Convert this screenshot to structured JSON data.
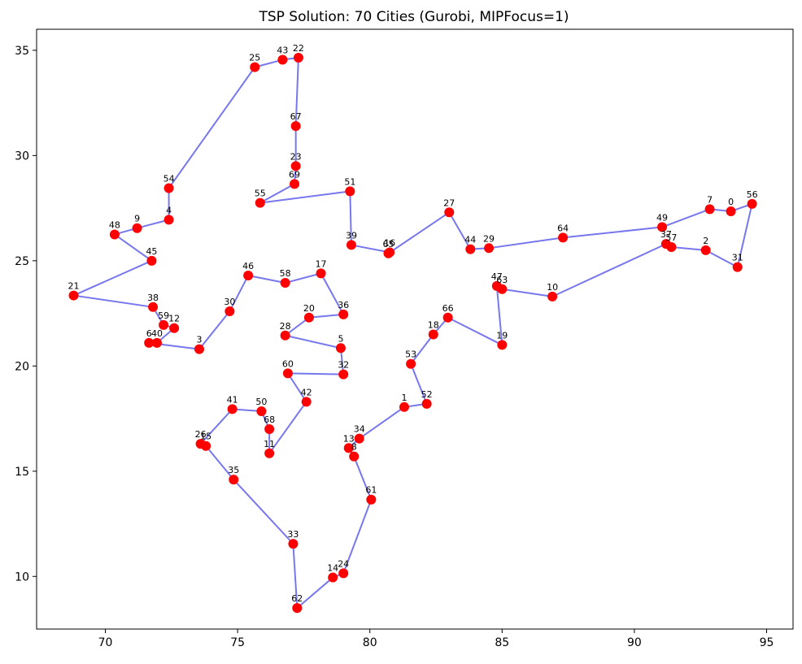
{
  "chart_data": {
    "type": "scatter",
    "title": "TSP Solution: 70 Cities (Gurobi, MIPFocus=1)",
    "xlabel": "",
    "ylabel": "",
    "xlim": [
      67.4,
      96.0
    ],
    "ylim": [
      7.5,
      36.0
    ],
    "xticks": [
      70,
      75,
      80,
      85,
      90,
      95
    ],
    "yticks": [
      10,
      15,
      20,
      25,
      30,
      35
    ],
    "grid": false,
    "colors": {
      "route": "#7777ee",
      "city": "#ff0000",
      "text": "#000000"
    },
    "cities": [
      {
        "id": "0",
        "x": 93.65,
        "y": 27.35
      },
      {
        "id": "1",
        "x": 81.3,
        "y": 18.05
      },
      {
        "id": "2",
        "x": 92.7,
        "y": 25.5
      },
      {
        "id": "3",
        "x": 73.55,
        "y": 20.8
      },
      {
        "id": "4",
        "x": 72.4,
        "y": 26.95
      },
      {
        "id": "5",
        "x": 78.9,
        "y": 20.85
      },
      {
        "id": "6",
        "x": 71.65,
        "y": 21.1
      },
      {
        "id": "7",
        "x": 92.85,
        "y": 27.45
      },
      {
        "id": "8",
        "x": 79.4,
        "y": 15.7
      },
      {
        "id": "9",
        "x": 71.2,
        "y": 26.55
      },
      {
        "id": "10",
        "x": 86.9,
        "y": 23.3
      },
      {
        "id": "11",
        "x": 76.2,
        "y": 15.85
      },
      {
        "id": "12",
        "x": 72.6,
        "y": 21.8
      },
      {
        "id": "13",
        "x": 79.2,
        "y": 16.1
      },
      {
        "id": "14",
        "x": 78.6,
        "y": 9.95
      },
      {
        "id": "15",
        "x": 73.8,
        "y": 16.2
      },
      {
        "id": "16",
        "x": 80.75,
        "y": 25.4
      },
      {
        "id": "17",
        "x": 78.15,
        "y": 24.4
      },
      {
        "id": "18",
        "x": 82.4,
        "y": 21.5
      },
      {
        "id": "19",
        "x": 85.0,
        "y": 21.0
      },
      {
        "id": "20",
        "x": 77.7,
        "y": 22.3
      },
      {
        "id": "21",
        "x": 68.8,
        "y": 23.35
      },
      {
        "id": "22",
        "x": 77.3,
        "y": 34.65
      },
      {
        "id": "23",
        "x": 77.2,
        "y": 29.5
      },
      {
        "id": "24",
        "x": 79.0,
        "y": 10.15
      },
      {
        "id": "25",
        "x": 75.65,
        "y": 34.2
      },
      {
        "id": "26",
        "x": 73.6,
        "y": 16.3
      },
      {
        "id": "27",
        "x": 83.0,
        "y": 27.3
      },
      {
        "id": "28",
        "x": 76.8,
        "y": 21.45
      },
      {
        "id": "29",
        "x": 84.5,
        "y": 25.6
      },
      {
        "id": "30",
        "x": 74.7,
        "y": 22.6
      },
      {
        "id": "31",
        "x": 93.9,
        "y": 24.7
      },
      {
        "id": "32",
        "x": 79.0,
        "y": 19.6
      },
      {
        "id": "33",
        "x": 77.1,
        "y": 11.55
      },
      {
        "id": "34",
        "x": 79.6,
        "y": 16.55
      },
      {
        "id": "35",
        "x": 74.85,
        "y": 14.6
      },
      {
        "id": "36",
        "x": 79.0,
        "y": 22.45
      },
      {
        "id": "37",
        "x": 91.2,
        "y": 25.8
      },
      {
        "id": "38",
        "x": 71.8,
        "y": 22.8
      },
      {
        "id": "39",
        "x": 79.3,
        "y": 25.75
      },
      {
        "id": "40",
        "x": 71.95,
        "y": 21.1
      },
      {
        "id": "41",
        "x": 74.8,
        "y": 17.95
      },
      {
        "id": "42",
        "x": 77.6,
        "y": 18.3
      },
      {
        "id": "43",
        "x": 76.7,
        "y": 34.55
      },
      {
        "id": "44",
        "x": 83.8,
        "y": 25.55
      },
      {
        "id": "45",
        "x": 71.75,
        "y": 25.0
      },
      {
        "id": "46",
        "x": 75.4,
        "y": 24.3
      },
      {
        "id": "47",
        "x": 84.8,
        "y": 23.8
      },
      {
        "id": "48",
        "x": 70.35,
        "y": 26.25
      },
      {
        "id": "49",
        "x": 91.05,
        "y": 26.6
      },
      {
        "id": "50",
        "x": 75.9,
        "y": 17.85
      },
      {
        "id": "51",
        "x": 79.25,
        "y": 28.3
      },
      {
        "id": "52",
        "x": 82.15,
        "y": 18.2
      },
      {
        "id": "53",
        "x": 81.55,
        "y": 20.1
      },
      {
        "id": "54",
        "x": 72.4,
        "y": 28.45
      },
      {
        "id": "55",
        "x": 75.85,
        "y": 27.75
      },
      {
        "id": "56",
        "x": 94.45,
        "y": 27.7
      },
      {
        "id": "57",
        "x": 91.4,
        "y": 25.65
      },
      {
        "id": "58",
        "x": 76.8,
        "y": 23.95
      },
      {
        "id": "59",
        "x": 72.2,
        "y": 21.95
      },
      {
        "id": "60",
        "x": 76.9,
        "y": 19.65
      },
      {
        "id": "61",
        "x": 80.05,
        "y": 13.65
      },
      {
        "id": "62",
        "x": 77.25,
        "y": 8.5
      },
      {
        "id": "63",
        "x": 85.0,
        "y": 23.65
      },
      {
        "id": "64",
        "x": 87.3,
        "y": 26.1
      },
      {
        "id": "65",
        "x": 80.7,
        "y": 25.35
      },
      {
        "id": "66",
        "x": 82.95,
        "y": 22.3
      },
      {
        "id": "67",
        "x": 77.2,
        "y": 31.4
      },
      {
        "id": "68",
        "x": 76.2,
        "y": 17.0
      },
      {
        "id": "69",
        "x": 77.15,
        "y": 28.65
      }
    ],
    "tour": [
      "0",
      "7",
      "49",
      "64",
      "29",
      "44",
      "27",
      "65",
      "16",
      "39",
      "51",
      "55",
      "69",
      "23",
      "67",
      "22",
      "43",
      "25",
      "54",
      "4",
      "9",
      "48",
      "45",
      "21",
      "38",
      "59",
      "12",
      "40",
      "6",
      "3",
      "30",
      "46",
      "58",
      "17",
      "36",
      "20",
      "28",
      "5",
      "32",
      "60",
      "42",
      "11",
      "68",
      "50",
      "41",
      "26",
      "15",
      "35",
      "33",
      "62",
      "14",
      "24",
      "61",
      "8",
      "13",
      "34",
      "1",
      "52",
      "53",
      "18",
      "66",
      "19",
      "47",
      "63",
      "10",
      "37",
      "57",
      "2",
      "31",
      "56",
      "0"
    ]
  }
}
